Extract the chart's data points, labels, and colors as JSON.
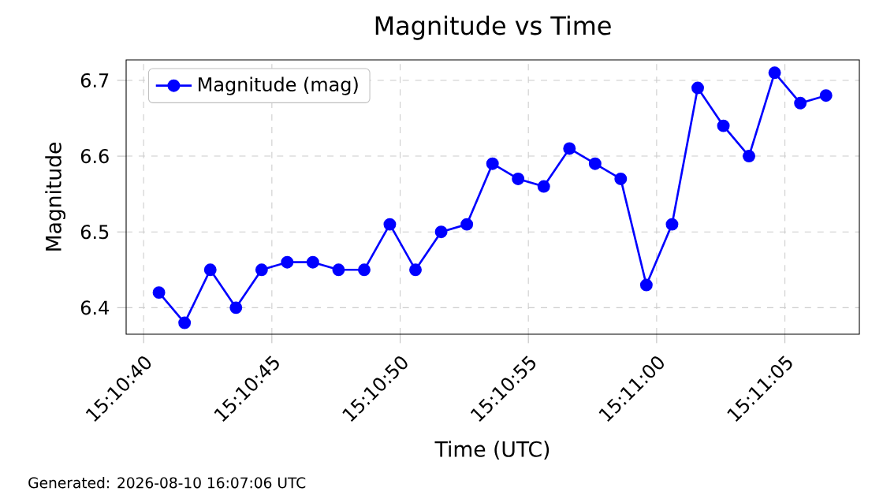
{
  "chart_data": {
    "type": "line",
    "title": "Magnitude vs Time",
    "xlabel": "Time (UTC)",
    "ylabel": "Magnitude",
    "x": [
      15.177944,
      15.178222,
      15.1785,
      15.178778,
      15.179056,
      15.179333,
      15.179611,
      15.179889,
      15.180167,
      15.180444,
      15.180722,
      15.181,
      15.181278,
      15.181556,
      15.181833,
      15.182111,
      15.182389,
      15.182667,
      15.182944,
      15.183222,
      15.1835,
      15.183778,
      15.184056,
      15.184333,
      15.184611,
      15.184889,
      15.185167
    ],
    "series": [
      {
        "name": "Magnitude (mag)",
        "color": "#0000ff",
        "values": [
          6.42,
          6.38,
          6.45,
          6.4,
          6.45,
          6.46,
          6.46,
          6.45,
          6.45,
          6.51,
          6.45,
          6.5,
          6.51,
          6.59,
          6.57,
          6.56,
          6.61,
          6.59,
          6.57,
          6.43,
          6.51,
          6.69,
          6.64,
          6.6,
          6.71,
          6.67,
          6.68
        ]
      }
    ],
    "xlim": [
      15.177589,
      15.185528
    ],
    "ylim": [
      6.365,
      6.727
    ],
    "xticks": [
      {
        "value": 15.177778,
        "label": "15:10:40"
      },
      {
        "value": 15.179167,
        "label": "15:10:45"
      },
      {
        "value": 15.180556,
        "label": "15:10:50"
      },
      {
        "value": 15.181944,
        "label": "15:10:55"
      },
      {
        "value": 15.183333,
        "label": "15:11:00"
      },
      {
        "value": 15.184722,
        "label": "15:11:05"
      }
    ],
    "yticks": [
      6.4,
      6.5,
      6.6,
      6.7
    ],
    "grid": true,
    "legend": "top left",
    "marker": "circle",
    "line_style": "solid",
    "annotations": [
      "Generated: 2026-08-10 16:07:06 UTC"
    ]
  }
}
